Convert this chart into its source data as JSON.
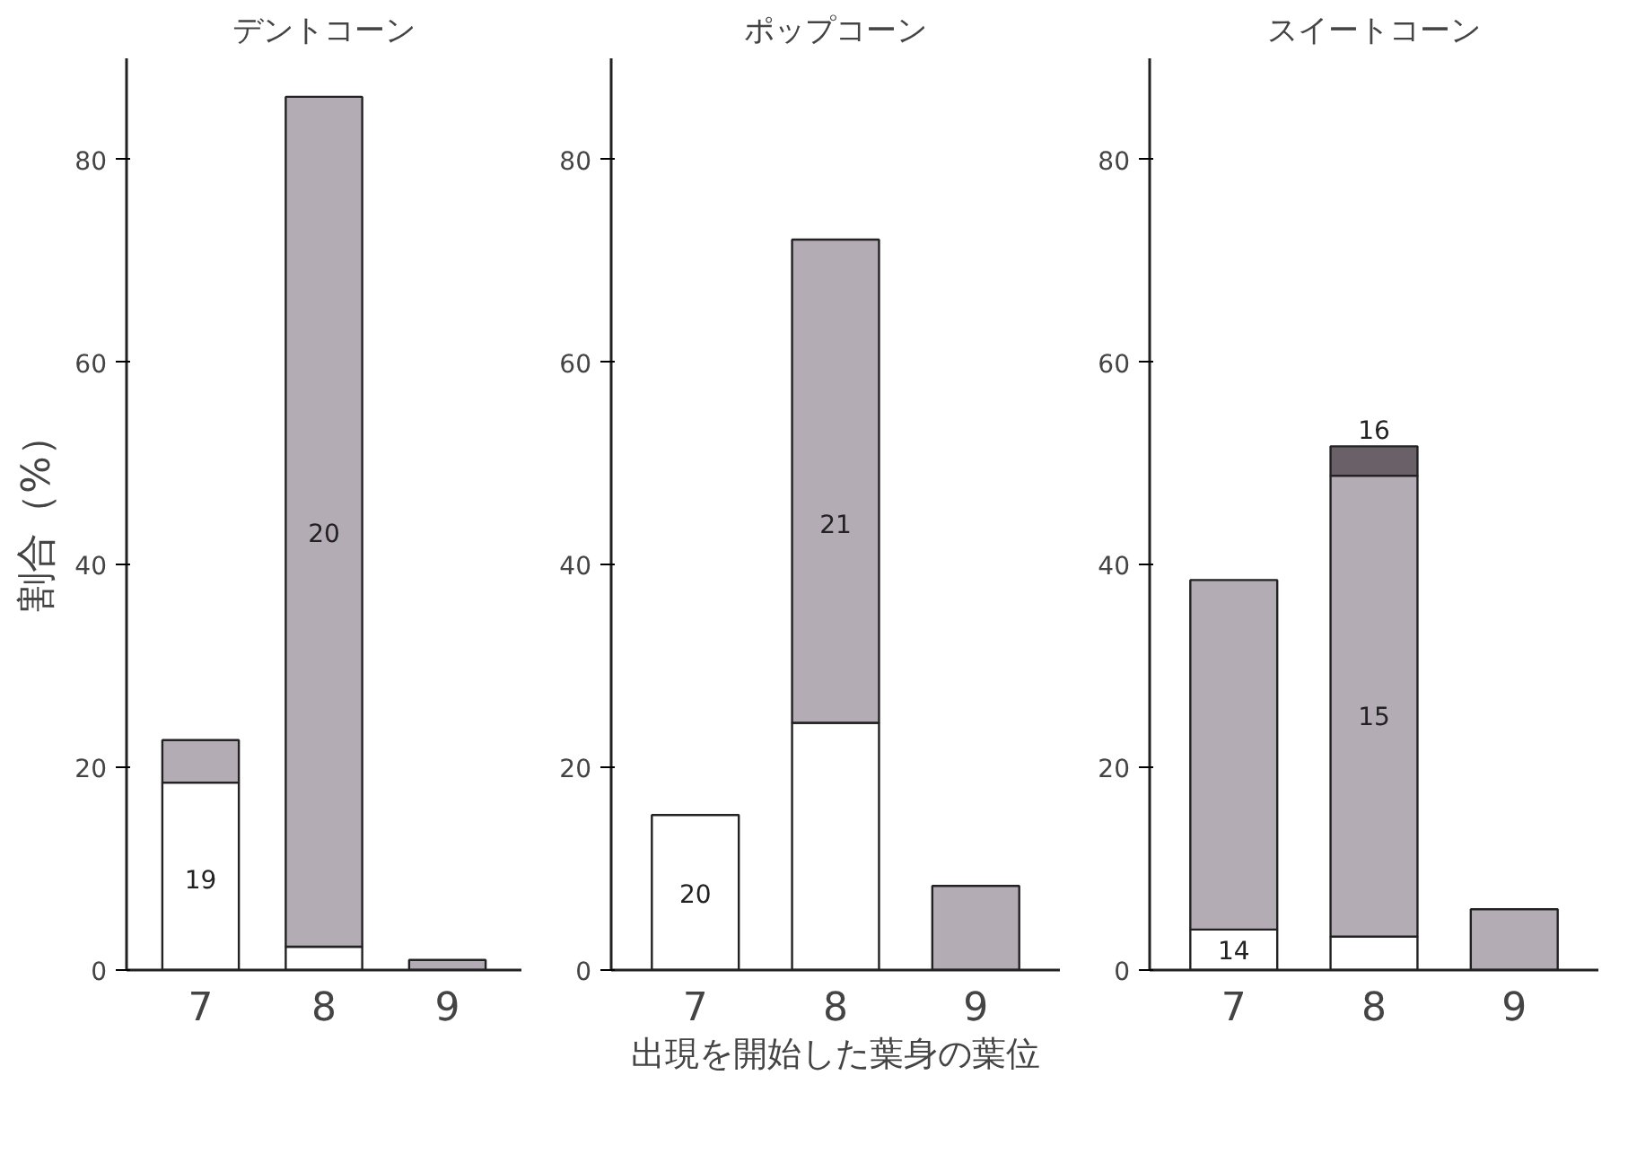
{
  "chart_data": [
    {
      "type": "bar",
      "stacked": true,
      "title": "デントコーン",
      "ylabel": "割合（%）",
      "categories": [
        "7",
        "8",
        "9"
      ],
      "series": [
        {
          "color": "#ffffff",
          "values": [
            18.5,
            2.3,
            null
          ]
        },
        {
          "color": "#b4acb4",
          "values": [
            4.2,
            83.9,
            1
          ]
        }
      ],
      "ylim": [
        0,
        90
      ],
      "yticks": [
        0,
        20,
        40,
        60,
        80
      ],
      "grid": false,
      "annotations": [
        "19",
        "20"
      ]
    },
    {
      "type": "bar",
      "stacked": true,
      "title": "ポップコーン",
      "xlabel": "出現を開始した葉身の葉位",
      "categories": [
        "7",
        "8",
        "9"
      ],
      "series": [
        {
          "color": "#ffffff",
          "values": [
            15.3,
            24.4,
            null
          ]
        },
        {
          "color": "#b4acb4",
          "values": [
            null,
            47.7,
            8.3
          ]
        }
      ],
      "ylim": [
        0,
        90
      ],
      "yticks": [
        0,
        20,
        40,
        60,
        80
      ],
      "grid": false,
      "annotations": [
        {
          "text": "20",
          "x": "7",
          "y": 15.3
        },
        "21"
      ]
    },
    {
      "type": "bar",
      "stacked": true,
      "title": "スイートコーン",
      "categories": [
        "7",
        "8",
        "9"
      ],
      "series": [
        {
          "color": "#ffffff",
          "values": [
            4.0,
            3.3,
            null
          ]
        },
        {
          "color": "#b4acb4",
          "values": [
            34.5,
            45.5,
            6.0
          ]
        },
        {
          "color": "#6a6068",
          "values": [
            null,
            2.9,
            null
          ]
        }
      ],
      "ylim": [
        0,
        90
      ],
      "yticks": [
        0,
        20,
        40,
        60,
        80
      ],
      "grid": false,
      "annotations": [
        {
          "text": "14",
          "x": "7",
          "y": 4.0
        },
        "15",
        {
          "text": "16",
          "x": "8",
          "y": 51.7
        }
      ]
    }
  ]
}
